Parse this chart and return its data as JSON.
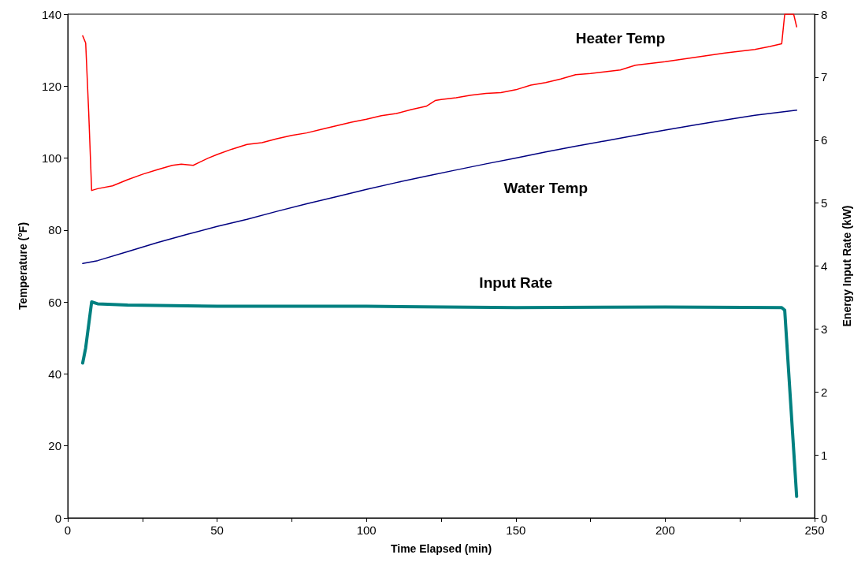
{
  "chart_data": {
    "type": "line",
    "xlabel": "Time Elapsed (min)",
    "ylabel": "Temperature (°F)",
    "y2label": "Energy Input Rate (kW)",
    "xlim": [
      0,
      250
    ],
    "xticks": [
      0,
      {
        "value": 25,
        "label": null
      },
      50,
      {
        "value": 75,
        "label": null
      },
      100,
      {
        "value": 125,
        "label": null
      },
      150,
      {
        "value": 175,
        "label": null
      },
      200,
      {
        "value": 225,
        "label": null
      },
      250
    ],
    "ylim": [
      0,
      140
    ],
    "yticks": [
      0,
      20,
      40,
      60,
      80,
      100,
      120,
      140
    ],
    "y2lim": [
      0,
      8
    ],
    "y2ticks": [
      0,
      1,
      2,
      3,
      4,
      5,
      6,
      7,
      8
    ],
    "grid": false,
    "legend": false,
    "marker": "none",
    "line_style": "solid",
    "series": [
      {
        "name": "Heater Temp",
        "color": "#ff0000",
        "x": [
          5,
          6,
          7,
          8,
          10,
          15,
          20,
          25,
          30,
          35,
          38,
          42,
          47,
          50,
          55,
          60,
          65,
          70,
          75,
          80,
          85,
          90,
          95,
          100,
          105,
          110,
          115,
          120,
          123,
          125,
          130,
          135,
          140,
          145,
          150,
          155,
          160,
          165,
          170,
          175,
          180,
          185,
          190,
          195,
          200,
          205,
          210,
          215,
          220,
          225,
          230,
          235,
          239,
          240,
          243,
          244
        ],
        "values": [
          134,
          132,
          113,
          91,
          91.5,
          92.3,
          94,
          95.5,
          96.8,
          98,
          98.3,
          98,
          100,
          101,
          102.5,
          103.8,
          104.3,
          105.4,
          106.3,
          107,
          108,
          109,
          110,
          110.8,
          111.8,
          112.4,
          113.5,
          114.4,
          116,
          116.3,
          116.8,
          117.5,
          118,
          118.2,
          119,
          120.3,
          121,
          122,
          123.2,
          123.5,
          124,
          124.5,
          125.8,
          126.3,
          126.8,
          127.4,
          128,
          128.6,
          129.2,
          129.7,
          130.2,
          131,
          131.8,
          140,
          140,
          136.5
        ]
      },
      {
        "name": "Water Temp",
        "color": "#000080",
        "x": [
          5,
          10,
          20,
          30,
          40,
          50,
          60,
          70,
          80,
          90,
          100,
          110,
          120,
          130,
          140,
          150,
          160,
          170,
          180,
          190,
          200,
          210,
          220,
          230,
          244
        ],
        "values": [
          70.7,
          71.5,
          74,
          76.5,
          78.8,
          81,
          83,
          85.2,
          87.3,
          89.3,
          91.3,
          93.2,
          95,
          96.7,
          98.4,
          100,
          101.7,
          103.3,
          104.8,
          106.3,
          107.8,
          109.2,
          110.6,
          111.9,
          113.3
        ]
      },
      {
        "name": "Input Rate",
        "color": "#008080",
        "axis": "y2",
        "x": [
          5,
          6,
          8,
          10,
          20,
          50,
          100,
          150,
          200,
          239,
          240,
          244
        ],
        "values": [
          2.46,
          2.7,
          3.43,
          3.4,
          3.38,
          3.36,
          3.36,
          3.34,
          3.35,
          3.34,
          3.3,
          0.34
        ]
      }
    ]
  }
}
